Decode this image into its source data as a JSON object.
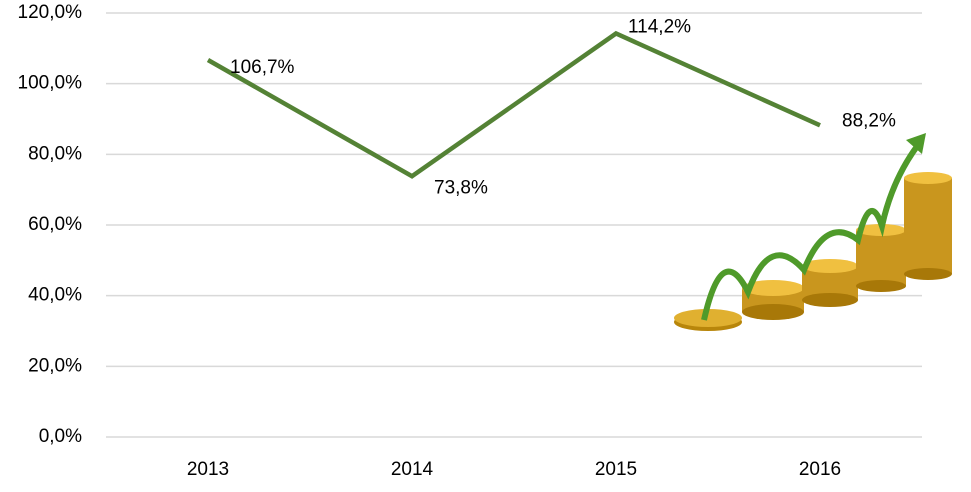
{
  "chart_data": {
    "type": "line",
    "categories": [
      "2013",
      "2014",
      "2015",
      "2016"
    ],
    "series": [
      {
        "color": "#548235",
        "values": [
          106.7,
          73.8,
          114.2,
          88.2
        ],
        "value_labels": [
          "106,7%",
          "73,8%",
          "114,2%",
          "88,2%"
        ]
      }
    ],
    "ylim": [
      0,
      120
    ],
    "yticks": [
      {
        "value": 0,
        "label": "0,0%"
      },
      {
        "value": 20,
        "label": "20,0%"
      },
      {
        "value": 40,
        "label": "40,0%"
      },
      {
        "value": 60,
        "label": "60,0%"
      },
      {
        "value": 80,
        "label": "80,0%"
      },
      {
        "value": 100,
        "label": "100,0%"
      },
      {
        "value": 120,
        "label": "120,0%"
      }
    ],
    "grid": true
  }
}
